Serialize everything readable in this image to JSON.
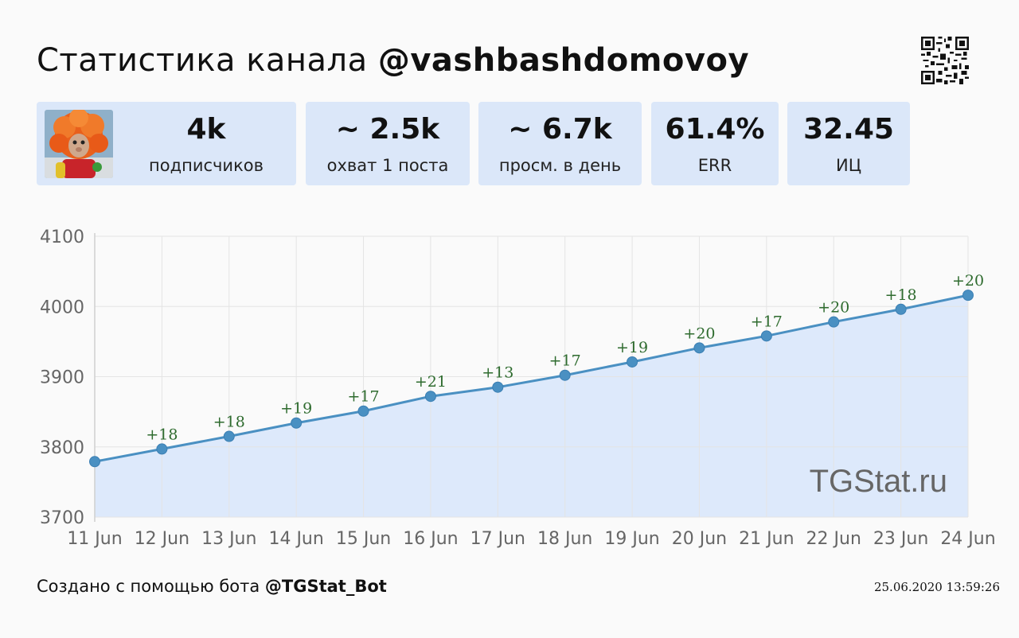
{
  "header": {
    "title_prefix": "Статистика канала",
    "channel": "@vashbashdomovoy"
  },
  "stats": [
    {
      "value": "4k",
      "label": "подписчиков"
    },
    {
      "value": "~ 2.5k",
      "label": "охват 1 поста"
    },
    {
      "value": "~ 6.7k",
      "label": "просм. в день"
    },
    {
      "value": "61.4%",
      "label": "ERR"
    },
    {
      "value": "32.45",
      "label": "ИЦ"
    }
  ],
  "chart_data": {
    "type": "area",
    "x": [
      "11 Jun",
      "12 Jun",
      "13 Jun",
      "14 Jun",
      "15 Jun",
      "16 Jun",
      "17 Jun",
      "18 Jun",
      "19 Jun",
      "20 Jun",
      "21 Jun",
      "22 Jun",
      "23 Jun",
      "24 Jun"
    ],
    "values": [
      3779,
      3797,
      3815,
      3834,
      3851,
      3872,
      3885,
      3902,
      3921,
      3941,
      3958,
      3978,
      3996,
      4016
    ],
    "point_labels": [
      "",
      "+18",
      "+18",
      "+19",
      "+17",
      "+21",
      "+13",
      "+17",
      "+19",
      "+20",
      "+17",
      "+20",
      "+18",
      "+20"
    ],
    "yticks": [
      3700,
      3800,
      3900,
      4000,
      4100
    ],
    "ylim": [
      3700,
      4100
    ],
    "grid": true,
    "watermark": "TGStat.ru",
    "colors": {
      "line": "#4a90c2",
      "fill": "#dde9fb",
      "label": "#2e6b2e",
      "grid": "#e4e4e4"
    }
  },
  "footer": {
    "prefix": "Создано с помощью бота",
    "bot": "@TGStat_Bot",
    "timestamp": "25.06.2020 13:59:26"
  }
}
